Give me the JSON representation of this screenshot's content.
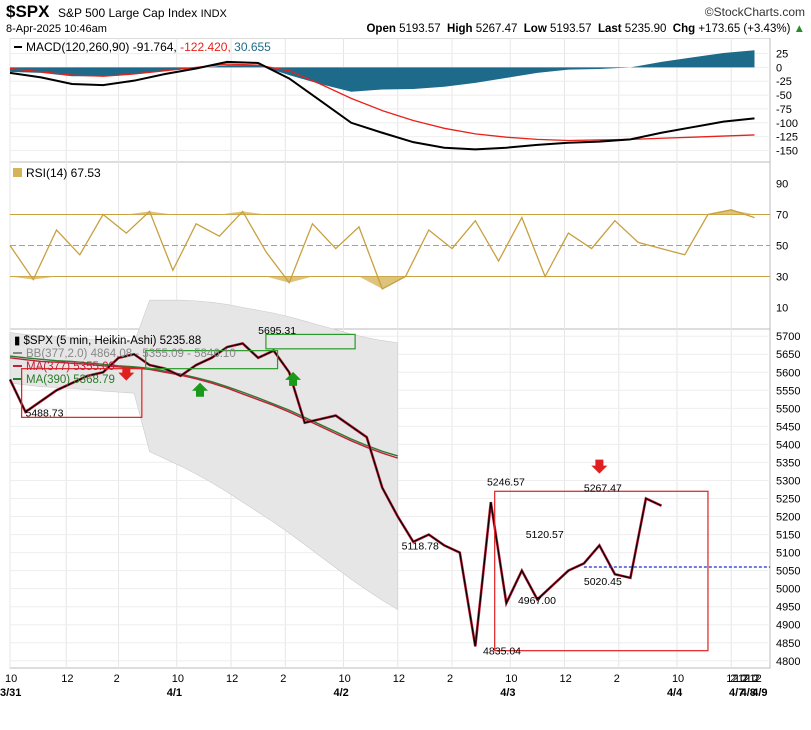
{
  "header": {
    "symbol": "$SPX",
    "name": "S&P 500 Large Cap Index",
    "exchange": "INDX",
    "date": "8-Apr-2025 10:46am",
    "brand": "©StockCharts.com",
    "open_label": "Open",
    "open": "5193.57",
    "high_label": "High",
    "high": "5267.47",
    "low_label": "Low",
    "low": "5193.57",
    "last_label": "Last",
    "last": "5235.90",
    "chg_label": "Chg",
    "chg": "+173.65 (+3.43%)"
  },
  "chart_data": [
    {
      "type": "area",
      "panel": "MACD",
      "legend": {
        "label": "MACD(120,260,90)",
        "macd": "-91.764",
        "signal": "-122.420",
        "histogram": "30.655"
      },
      "y_ticks": [
        "25",
        "0",
        "-25",
        "-50",
        "-75",
        "-100",
        "-125",
        "-150"
      ],
      "ylim": [
        -160,
        35
      ],
      "x_index": [
        0,
        8,
        16,
        24,
        32,
        40,
        48,
        56,
        64,
        72,
        80,
        88,
        96,
        104,
        112,
        120,
        128,
        136,
        144,
        152,
        160,
        168,
        176,
        184,
        192
      ],
      "macd": [
        -10,
        -18,
        -30,
        -32,
        -24,
        -12,
        -2,
        10,
        8,
        -20,
        -60,
        -100,
        -118,
        -135,
        -145,
        -148,
        -145,
        -140,
        -136,
        -134,
        -130,
        -118,
        -108,
        -98,
        -92
      ],
      "signal": [
        -2,
        -8,
        -14,
        -16,
        -12,
        -6,
        0,
        6,
        4,
        -6,
        -30,
        -56,
        -78,
        -96,
        -110,
        -120,
        -126,
        -130,
        -132,
        -131,
        -130,
        -128,
        -126,
        -124,
        -122
      ],
      "histogram": [
        -8,
        -10,
        -16,
        -16,
        -12,
        -6,
        -2,
        4,
        4,
        -14,
        -30,
        -44,
        -40,
        -39,
        -35,
        -28,
        -19,
        -10,
        -4,
        -3,
        0,
        10,
        18,
        26,
        31
      ],
      "colors": {
        "macd": "#000000",
        "signal": "#e8221a",
        "histogram": "#1e6a8a"
      }
    },
    {
      "type": "line",
      "panel": "RSI",
      "legend": {
        "label": "RSI(14)",
        "value": "67.53"
      },
      "y_ticks": [
        "90",
        "70",
        "50",
        "30",
        "10"
      ],
      "ylim": [
        0,
        100
      ],
      "levels": [
        70,
        50,
        30
      ],
      "x_index": [
        0,
        6,
        12,
        18,
        24,
        30,
        36,
        42,
        48,
        54,
        60,
        66,
        72,
        78,
        84,
        90,
        96,
        102,
        108,
        114,
        120,
        126,
        132,
        138,
        144,
        150,
        156,
        162,
        168,
        174,
        180,
        186,
        192
      ],
      "values": [
        50,
        28,
        60,
        44,
        70,
        58,
        72,
        34,
        64,
        56,
        72,
        46,
        26,
        64,
        48,
        62,
        22,
        30,
        60,
        48,
        66,
        40,
        68,
        30,
        58,
        48,
        66,
        52,
        48,
        44,
        70,
        73,
        68
      ],
      "colors": {
        "line": "#c8a040",
        "fill": "#d4b45a"
      }
    },
    {
      "type": "line",
      "panel": "Price",
      "legend": [
        {
          "label": "$SPX (5 min, Heikin-Ashi) 5235.88",
          "color": "#000000"
        },
        {
          "label": "BB(377,2.0) 4864.08 - 5355.09 - 5846.10",
          "color": "#888888"
        },
        {
          "label": "MA(377) 5355.09",
          "color": "#c0203a"
        },
        {
          "label": "MA(390) 5368.79",
          "color": "#2c7a2c"
        }
      ],
      "y_ticks": [
        "5700",
        "5650",
        "5600",
        "5550",
        "5500",
        "5450",
        "5400",
        "5350",
        "5300",
        "5250",
        "5200",
        "5150",
        "5100",
        "5050",
        "5000",
        "4950",
        "4900",
        "4850",
        "4800"
      ],
      "ylim": [
        4780,
        5720
      ],
      "x_index": [
        0,
        4,
        8,
        12,
        16,
        20,
        24,
        28,
        32,
        36,
        40,
        44,
        48,
        52,
        56,
        60,
        64,
        68,
        72,
        76,
        80,
        84,
        88,
        92,
        96,
        100,
        104,
        108,
        112,
        116,
        120,
        124,
        128,
        132,
        136,
        140,
        144,
        148,
        152,
        156,
        160,
        164,
        168,
        172,
        176,
        180,
        184,
        188,
        192,
        196
      ],
      "close": [
        5580,
        5490,
        5520,
        5550,
        5570,
        5590,
        5600,
        5640,
        5650,
        5620,
        5610,
        5590,
        5620,
        5640,
        5670,
        5680,
        5640,
        5660,
        5600,
        5460,
        5470,
        5480,
        5450,
        5420,
        5280,
        5200,
        5130,
        5150,
        5120,
        5100,
        4840,
        5240,
        4960,
        5050,
        4970,
        5010,
        5050,
        5070,
        5120,
        5040,
        5030,
        5250,
        5230,
        null,
        null,
        null,
        null,
        null,
        null,
        null
      ],
      "ma377": [
        5640,
        5635,
        5630,
        5628,
        5625,
        5622,
        5618,
        5615,
        5612,
        5608,
        5600,
        5592,
        5582,
        5570,
        5556,
        5540,
        5524,
        5508,
        5490,
        5470,
        5450,
        5430,
        5410,
        5392,
        5376,
        5362
      ],
      "ma390": [
        5645,
        5640,
        5636,
        5632,
        5630,
        5626,
        5622,
        5618,
        5615,
        5611,
        5603,
        5595,
        5585,
        5574,
        5560,
        5545,
        5529,
        5512,
        5495,
        5475,
        5455,
        5435,
        5415,
        5397,
        5381,
        5368
      ],
      "annotations": [
        "5488.73",
        "5695.31",
        "5118.78",
        "5246.57",
        "5267.47",
        "5120.57",
        "5020.45",
        "4967.00",
        "4835.04"
      ],
      "bb_upper": 5846.1,
      "bb_middle": 5355.09,
      "bb_lower": 4864.08,
      "reference_line": 5060,
      "x_labels": [
        {
          "label": "10",
          "date": "3/31"
        },
        {
          "label": "12"
        },
        {
          "label": "2"
        },
        {
          "label": "10",
          "date": "4/1"
        },
        {
          "label": "12"
        },
        {
          "label": "2"
        },
        {
          "label": "10",
          "date": "4/2"
        },
        {
          "label": "12"
        },
        {
          "label": "2"
        },
        {
          "label": "10",
          "date": "4/3"
        },
        {
          "label": "12"
        },
        {
          "label": "2"
        },
        {
          "label": "10",
          "date": "4/4"
        },
        {
          "label": "12"
        },
        {
          "label": "2"
        },
        {
          "label": "10",
          "date": "4/7"
        },
        {
          "label": "12"
        },
        {
          "label": "2"
        },
        {
          "label": "10",
          "date": "4/8"
        },
        {
          "label": "12"
        },
        {
          "label": "2"
        },
        {
          "label": "",
          "date": "4/9"
        }
      ]
    }
  ]
}
